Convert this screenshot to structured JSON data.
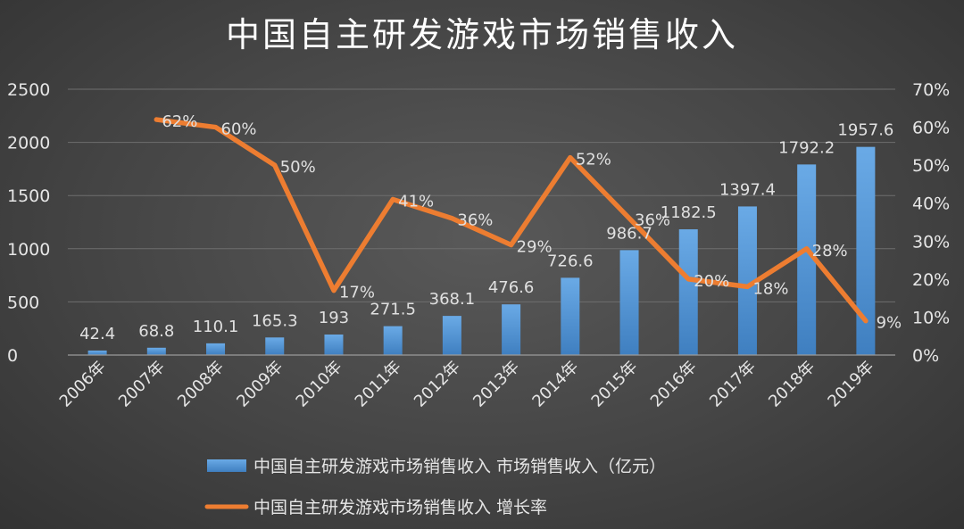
{
  "chart_data": {
    "type": "bar",
    "title": "中国自主研发游戏市场销售收入",
    "categories": [
      "2006年",
      "2007年",
      "2008年",
      "2009年",
      "2010年",
      "2011年",
      "2012年",
      "2013年",
      "2014年",
      "2015年",
      "2016年",
      "2017年",
      "2018年",
      "2019年"
    ],
    "series": [
      {
        "name": "中国自主研发游戏市场销售收入 市场销售收入（亿元）",
        "type": "bar",
        "axis": "left",
        "color": "#5b9bd5",
        "values": [
          42.4,
          68.8,
          110.1,
          165.3,
          193,
          271.5,
          368.1,
          476.6,
          726.6,
          986.7,
          1182.5,
          1397.4,
          1792.2,
          1957.6
        ],
        "labels": [
          "42.4",
          "68.8",
          "110.1",
          "165.3",
          "193",
          "271.5",
          "368.1",
          "476.6",
          "726.6",
          "986.7",
          "1182.5",
          "1397.4",
          "1792.2",
          "1957.6"
        ]
      },
      {
        "name": "中国自主研发游戏市场销售收入 增长率",
        "type": "line",
        "axis": "right",
        "color": "#ed7d31",
        "values": [
          null,
          62,
          60,
          50,
          17,
          41,
          36,
          29,
          52,
          36,
          20,
          18,
          28,
          9
        ],
        "labels": [
          "",
          "62%",
          "60%",
          "50%",
          "17%",
          "41%",
          "36%",
          "29%",
          "52%",
          "36%",
          "20%",
          "18%",
          "28%",
          "9%"
        ]
      }
    ],
    "y_left": {
      "min": 0,
      "max": 2500,
      "ticks": [
        "0",
        "500",
        "1000",
        "1500",
        "2000",
        "2500"
      ]
    },
    "y_right": {
      "min": 0,
      "max": 70,
      "ticks": [
        "0%",
        "10%",
        "20%",
        "30%",
        "40%",
        "50%",
        "60%",
        "70%"
      ]
    },
    "grid": true,
    "legend": "bottom"
  }
}
